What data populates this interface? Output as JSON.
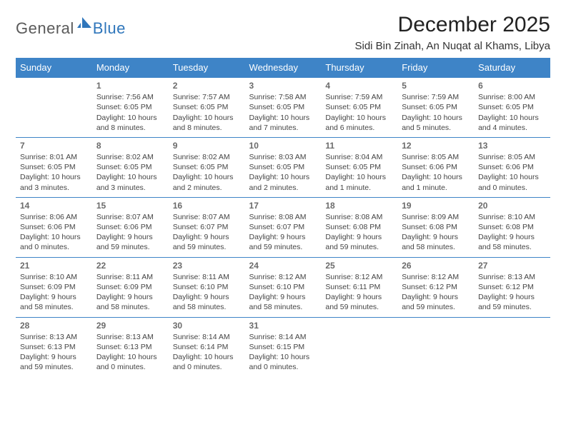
{
  "brand": {
    "text1": "General",
    "text2": "Blue",
    "accent_color": "#2f76bb"
  },
  "title": "December 2025",
  "location": "Sidi Bin Zinah, An Nuqat al Khams, Libya",
  "style": {
    "header_bg": "#3e84c7",
    "header_text": "#ffffff",
    "row_divider": "#3e84c7",
    "cell_text": "#444444",
    "daynum_color": "#6b6b6b",
    "title_color": "#222222",
    "title_fontsize": 30,
    "location_fontsize": 15,
    "dayheader_fontsize": 13,
    "cell_fontsize": 10.5
  },
  "day_headers": [
    "Sunday",
    "Monday",
    "Tuesday",
    "Wednesday",
    "Thursday",
    "Friday",
    "Saturday"
  ],
  "weeks": [
    [
      null,
      {
        "n": "1",
        "sr": "7:56 AM",
        "ss": "6:05 PM",
        "d1": "Daylight: 10 hours",
        "d2": "and 8 minutes."
      },
      {
        "n": "2",
        "sr": "7:57 AM",
        "ss": "6:05 PM",
        "d1": "Daylight: 10 hours",
        "d2": "and 8 minutes."
      },
      {
        "n": "3",
        "sr": "7:58 AM",
        "ss": "6:05 PM",
        "d1": "Daylight: 10 hours",
        "d2": "and 7 minutes."
      },
      {
        "n": "4",
        "sr": "7:59 AM",
        "ss": "6:05 PM",
        "d1": "Daylight: 10 hours",
        "d2": "and 6 minutes."
      },
      {
        "n": "5",
        "sr": "7:59 AM",
        "ss": "6:05 PM",
        "d1": "Daylight: 10 hours",
        "d2": "and 5 minutes."
      },
      {
        "n": "6",
        "sr": "8:00 AM",
        "ss": "6:05 PM",
        "d1": "Daylight: 10 hours",
        "d2": "and 4 minutes."
      }
    ],
    [
      {
        "n": "7",
        "sr": "8:01 AM",
        "ss": "6:05 PM",
        "d1": "Daylight: 10 hours",
        "d2": "and 3 minutes."
      },
      {
        "n": "8",
        "sr": "8:02 AM",
        "ss": "6:05 PM",
        "d1": "Daylight: 10 hours",
        "d2": "and 3 minutes."
      },
      {
        "n": "9",
        "sr": "8:02 AM",
        "ss": "6:05 PM",
        "d1": "Daylight: 10 hours",
        "d2": "and 2 minutes."
      },
      {
        "n": "10",
        "sr": "8:03 AM",
        "ss": "6:05 PM",
        "d1": "Daylight: 10 hours",
        "d2": "and 2 minutes."
      },
      {
        "n": "11",
        "sr": "8:04 AM",
        "ss": "6:05 PM",
        "d1": "Daylight: 10 hours",
        "d2": "and 1 minute."
      },
      {
        "n": "12",
        "sr": "8:05 AM",
        "ss": "6:06 PM",
        "d1": "Daylight: 10 hours",
        "d2": "and 1 minute."
      },
      {
        "n": "13",
        "sr": "8:05 AM",
        "ss": "6:06 PM",
        "d1": "Daylight: 10 hours",
        "d2": "and 0 minutes."
      }
    ],
    [
      {
        "n": "14",
        "sr": "8:06 AM",
        "ss": "6:06 PM",
        "d1": "Daylight: 10 hours",
        "d2": "and 0 minutes."
      },
      {
        "n": "15",
        "sr": "8:07 AM",
        "ss": "6:06 PM",
        "d1": "Daylight: 9 hours",
        "d2": "and 59 minutes."
      },
      {
        "n": "16",
        "sr": "8:07 AM",
        "ss": "6:07 PM",
        "d1": "Daylight: 9 hours",
        "d2": "and 59 minutes."
      },
      {
        "n": "17",
        "sr": "8:08 AM",
        "ss": "6:07 PM",
        "d1": "Daylight: 9 hours",
        "d2": "and 59 minutes."
      },
      {
        "n": "18",
        "sr": "8:08 AM",
        "ss": "6:08 PM",
        "d1": "Daylight: 9 hours",
        "d2": "and 59 minutes."
      },
      {
        "n": "19",
        "sr": "8:09 AM",
        "ss": "6:08 PM",
        "d1": "Daylight: 9 hours",
        "d2": "and 58 minutes."
      },
      {
        "n": "20",
        "sr": "8:10 AM",
        "ss": "6:08 PM",
        "d1": "Daylight: 9 hours",
        "d2": "and 58 minutes."
      }
    ],
    [
      {
        "n": "21",
        "sr": "8:10 AM",
        "ss": "6:09 PM",
        "d1": "Daylight: 9 hours",
        "d2": "and 58 minutes."
      },
      {
        "n": "22",
        "sr": "8:11 AM",
        "ss": "6:09 PM",
        "d1": "Daylight: 9 hours",
        "d2": "and 58 minutes."
      },
      {
        "n": "23",
        "sr": "8:11 AM",
        "ss": "6:10 PM",
        "d1": "Daylight: 9 hours",
        "d2": "and 58 minutes."
      },
      {
        "n": "24",
        "sr": "8:12 AM",
        "ss": "6:10 PM",
        "d1": "Daylight: 9 hours",
        "d2": "and 58 minutes."
      },
      {
        "n": "25",
        "sr": "8:12 AM",
        "ss": "6:11 PM",
        "d1": "Daylight: 9 hours",
        "d2": "and 59 minutes."
      },
      {
        "n": "26",
        "sr": "8:12 AM",
        "ss": "6:12 PM",
        "d1": "Daylight: 9 hours",
        "d2": "and 59 minutes."
      },
      {
        "n": "27",
        "sr": "8:13 AM",
        "ss": "6:12 PM",
        "d1": "Daylight: 9 hours",
        "d2": "and 59 minutes."
      }
    ],
    [
      {
        "n": "28",
        "sr": "8:13 AM",
        "ss": "6:13 PM",
        "d1": "Daylight: 9 hours",
        "d2": "and 59 minutes."
      },
      {
        "n": "29",
        "sr": "8:13 AM",
        "ss": "6:13 PM",
        "d1": "Daylight: 10 hours",
        "d2": "and 0 minutes."
      },
      {
        "n": "30",
        "sr": "8:14 AM",
        "ss": "6:14 PM",
        "d1": "Daylight: 10 hours",
        "d2": "and 0 minutes."
      },
      {
        "n": "31",
        "sr": "8:14 AM",
        "ss": "6:15 PM",
        "d1": "Daylight: 10 hours",
        "d2": "and 0 minutes."
      },
      null,
      null,
      null
    ]
  ]
}
